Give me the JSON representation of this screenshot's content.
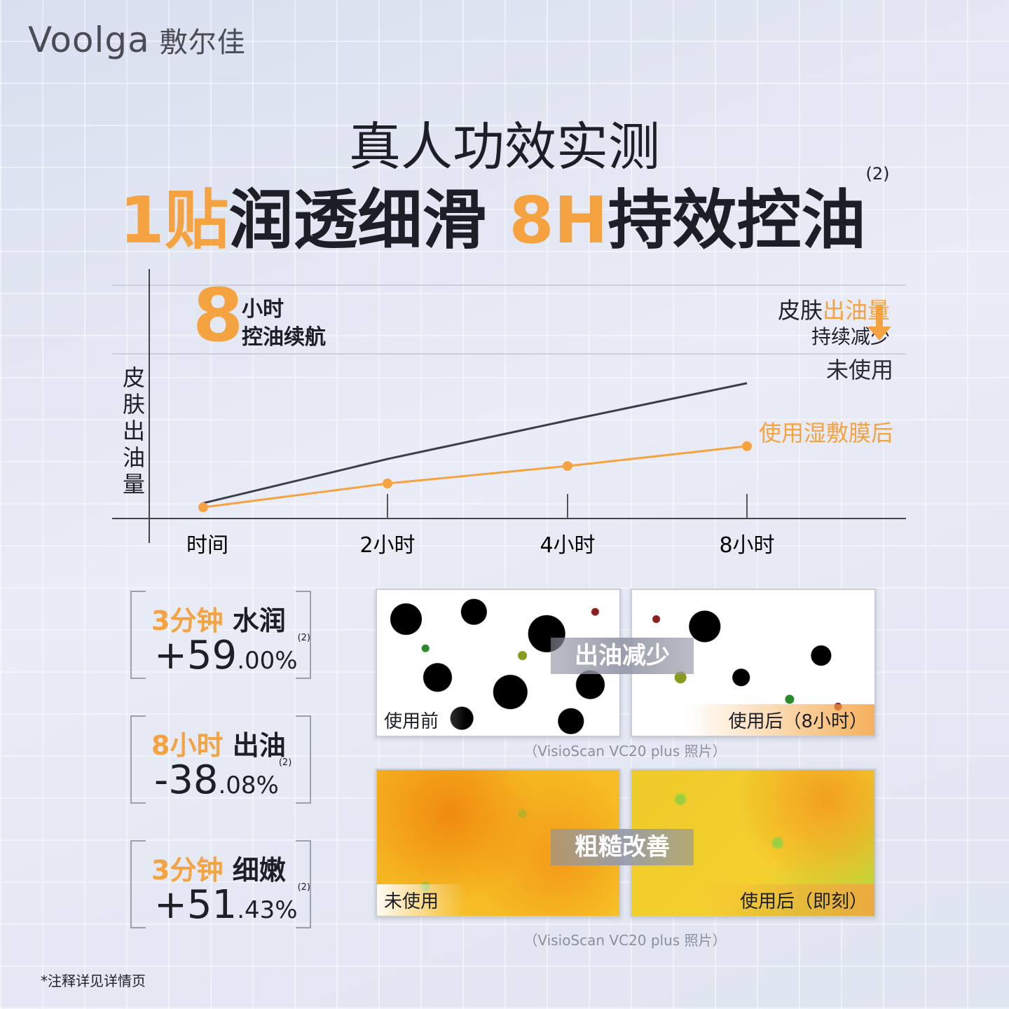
{
  "brand": {
    "logo": "Voolga",
    "name": "敷尔佳"
  },
  "header": {
    "title": "真人功效实测",
    "headline": [
      "1贴",
      "润透细滑",
      "8H",
      "持效控油"
    ],
    "note": "(2)"
  },
  "chart_data": {
    "type": "line",
    "badge_number": "8",
    "badge_lines": [
      "小时",
      "控油续航"
    ],
    "callout": [
      "皮肤",
      "出油量",
      "持续减少"
    ],
    "y_label": "皮肤出油量",
    "categories": [
      "时间",
      "2小时",
      "4小时",
      "8小时"
    ],
    "series": [
      {
        "name": "未使用",
        "color": "#3a3d4a",
        "values": [
          6.6,
          25.5,
          42,
          58
        ],
        "markers": false
      },
      {
        "name": "使用湿敷膜后",
        "color": "#f4a340",
        "values": [
          4.8,
          15,
          22.5,
          31
        ],
        "markers": true
      }
    ],
    "ylim": [
      0,
      100
    ]
  },
  "stats": [
    {
      "highlight": "3分钟",
      "label": "水润",
      "value": "+59",
      "decimal": ".00%",
      "note": "(2)"
    },
    {
      "highlight": "8小时",
      "label": "出油",
      "value": "-38",
      "decimal": ".08%",
      "note": "(2)"
    },
    {
      "highlight": "3分钟",
      "label": "细嫩",
      "value": "+51",
      "decimal": ".43%",
      "note": "(2)"
    }
  ],
  "images": [
    {
      "center": "出油减少",
      "left": "使用前",
      "right": "使用后（8小时）",
      "caption": "（VisioScan VC20 plus 照片）"
    },
    {
      "center": "粗糙改善",
      "left": "未使用",
      "right": "使用后（即刻）",
      "caption": "（VisioScan VC20 plus 照片）"
    }
  ],
  "footnote": "*注释详见详情页"
}
